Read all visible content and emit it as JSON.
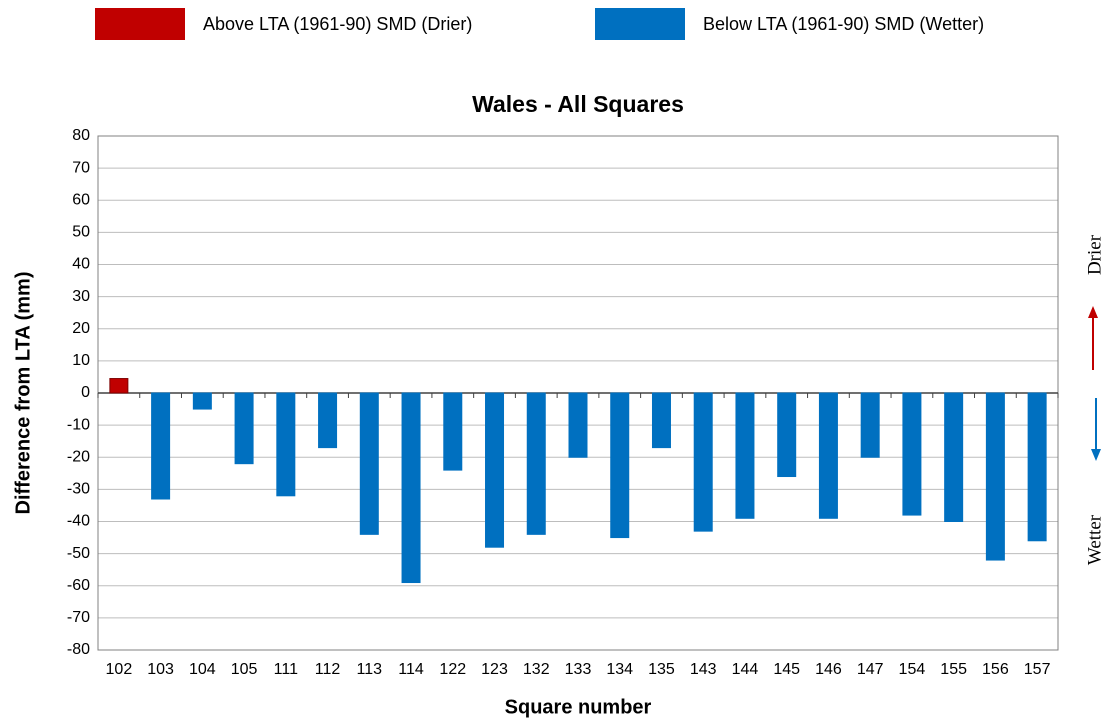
{
  "chart_data": {
    "type": "bar",
    "title": "Wales - All Squares",
    "x_label": "Square number",
    "y_label": "Difference from LTA (mm)",
    "annotations": [
      "Drier",
      "Wetter"
    ],
    "categories": [
      "102",
      "103",
      "104",
      "105",
      "111",
      "112",
      "113",
      "114",
      "122",
      "123",
      "132",
      "133",
      "134",
      "135",
      "143",
      "144",
      "145",
      "146",
      "147",
      "154",
      "155",
      "156",
      "157"
    ],
    "series": [
      {
        "name": "Above LTA (1961-90)  SMD (Drier)",
        "color": "#c00000",
        "values": [
          4.5,
          null,
          null,
          null,
          null,
          null,
          null,
          null,
          null,
          null,
          null,
          null,
          null,
          null,
          null,
          null,
          null,
          null,
          null,
          null,
          null,
          null,
          null
        ]
      },
      {
        "name": "Below LTA (1961-90) SMD (Wetter)",
        "color": "#0070c0",
        "values": [
          null,
          -33,
          -5,
          -22,
          -32,
          -17,
          -44,
          -59,
          -24,
          -48,
          -44,
          -20,
          -45,
          -17,
          -43,
          -39,
          -26,
          -39,
          -20,
          -38,
          -40,
          -52,
          -46
        ]
      }
    ],
    "ylim": [
      -80,
      80
    ],
    "yticks": [
      -80,
      -70,
      -60,
      -50,
      -40,
      -30,
      -20,
      -10,
      0,
      10,
      20,
      30,
      40,
      50,
      60,
      70,
      80
    ],
    "grid": true
  }
}
